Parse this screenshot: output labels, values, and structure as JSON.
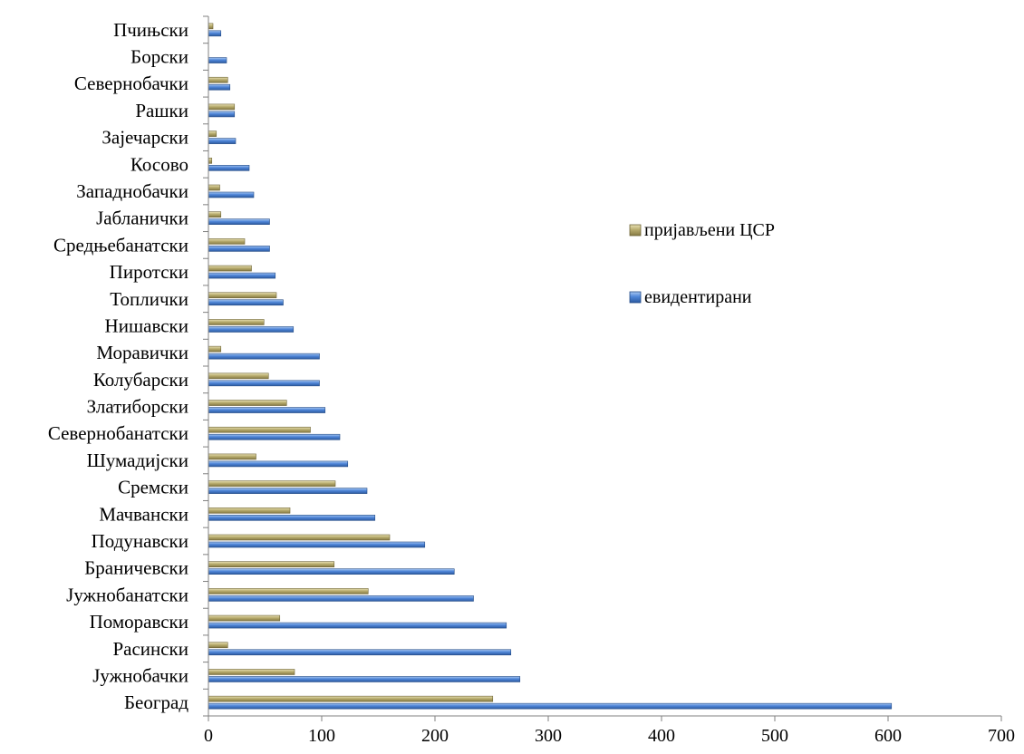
{
  "chart_data": {
    "type": "bar",
    "orientation": "horizontal",
    "categories": [
      "Београд",
      "Јужнобачки",
      "Расински",
      "Поморавски",
      "Јужнобанатски",
      "Браничевски",
      "Подунавски",
      "Мачвански",
      "Сремски",
      "Шумадијски",
      "Севернобанатски",
      "Златиборски",
      "Колубарски",
      "Моравички",
      "Нишавски",
      "Топлички",
      "Пиротски",
      "Средњебанатски",
      "Јабланички",
      "Западнобачки",
      "Косово",
      "Зајечарски",
      "Рашки",
      "Севернобачки",
      "Борски",
      "Пчињски"
    ],
    "series": [
      {
        "name": "евидентирани",
        "color": "#4f86d8",
        "values": [
          603,
          275,
          267,
          263,
          234,
          217,
          191,
          147,
          140,
          123,
          116,
          103,
          98,
          98,
          75,
          66,
          59,
          54,
          54,
          40,
          36,
          24,
          23,
          19,
          16,
          11
        ]
      },
      {
        "name": "пријављени ЦСР",
        "color": "#b9ad6f",
        "values": [
          251,
          76,
          17,
          63,
          141,
          111,
          160,
          72,
          112,
          42,
          90,
          69,
          53,
          11,
          49,
          60,
          38,
          32,
          11,
          10,
          3,
          7,
          23,
          17,
          0,
          4
        ]
      }
    ],
    "xlim": [
      0,
      700
    ],
    "xticks": [
      0,
      100,
      200,
      300,
      400,
      500,
      600,
      700
    ],
    "grid": false,
    "legend_position": "right"
  }
}
